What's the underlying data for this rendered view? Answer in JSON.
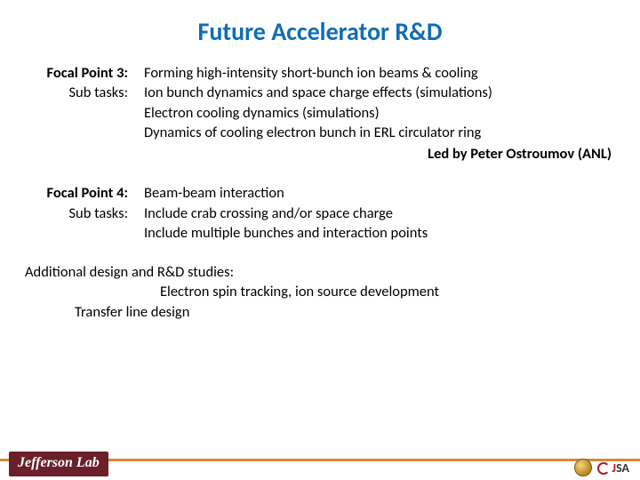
{
  "title": {
    "text": "Future Accelerator R&D",
    "color": "#0f6db5"
  },
  "sections": [
    {
      "label": "Focal Point 3:",
      "sublabel": "Sub tasks:",
      "lines": [
        "Forming high-intensity short-bunch ion beams & cooling",
        "Ion bunch dynamics and space charge effects (simulations)",
        "Electron cooling dynamics (simulations)",
        "Dynamics of cooling electron bunch in ERL circulator ring"
      ],
      "led_by": "Led by Peter Ostroumov (ANL)"
    },
    {
      "label": "Focal Point 4:",
      "sublabel": "Sub tasks:",
      "lines": [
        "Beam-beam interaction",
        "Include crab crossing and/or space charge",
        "Include multiple bunches and interaction points"
      ],
      "led_by": null
    }
  ],
  "additional": {
    "heading": "Additional design and R&D studies:",
    "line1": "Electron spin tracking, ion source development",
    "line2": "Transfer line design"
  },
  "footer": {
    "bar_color": "#d48a2e",
    "left_logo": "Jefferson Lab",
    "right_text_j": "J",
    "right_text_sa": "SA"
  }
}
